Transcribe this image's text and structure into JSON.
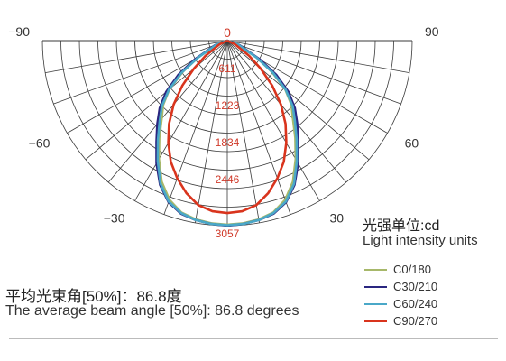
{
  "chart_data": {
    "type": "polar-line",
    "angle_unit": "degrees",
    "angle_range": [
      -90,
      90
    ],
    "angle_tick_labels": [
      "-90",
      "-60",
      "-30",
      "0",
      "30",
      "60",
      "90"
    ],
    "radial_max": 3057,
    "radial_tick_labels": [
      "611",
      "1223",
      "1834",
      "2446",
      "3057"
    ],
    "series": [
      {
        "name": "C0/180",
        "color": "#a7b86a",
        "points": [
          [
            -80,
            0
          ],
          [
            -70,
            190
          ],
          [
            -60,
            560
          ],
          [
            -55,
            900
          ],
          [
            -50,
            1250
          ],
          [
            -45,
            1500
          ],
          [
            -40,
            1690
          ],
          [
            -35,
            1960
          ],
          [
            -30,
            2260
          ],
          [
            -25,
            2570
          ],
          [
            -20,
            2800
          ],
          [
            -15,
            2940
          ],
          [
            -10,
            3000
          ],
          [
            -5,
            3030
          ],
          [
            0,
            3040
          ],
          [
            5,
            3030
          ],
          [
            10,
            3000
          ],
          [
            15,
            2940
          ],
          [
            20,
            2800
          ],
          [
            25,
            2570
          ],
          [
            30,
            2260
          ],
          [
            35,
            1960
          ],
          [
            40,
            1690
          ],
          [
            45,
            1500
          ],
          [
            50,
            1250
          ],
          [
            55,
            900
          ],
          [
            60,
            560
          ],
          [
            70,
            190
          ],
          [
            80,
            0
          ]
        ]
      },
      {
        "name": "C30/210",
        "color": "#2a2680",
        "points": [
          [
            -80,
            0
          ],
          [
            -70,
            210
          ],
          [
            -60,
            620
          ],
          [
            -55,
            990
          ],
          [
            -50,
            1320
          ],
          [
            -45,
            1580
          ],
          [
            -40,
            1800
          ],
          [
            -35,
            2040
          ],
          [
            -30,
            2340
          ],
          [
            -25,
            2630
          ],
          [
            -20,
            2840
          ],
          [
            -15,
            2960
          ],
          [
            -10,
            3010
          ],
          [
            -5,
            3040
          ],
          [
            0,
            3057
          ],
          [
            5,
            3040
          ],
          [
            10,
            3010
          ],
          [
            15,
            2960
          ],
          [
            20,
            2840
          ],
          [
            25,
            2630
          ],
          [
            30,
            2340
          ],
          [
            35,
            2040
          ],
          [
            40,
            1800
          ],
          [
            45,
            1580
          ],
          [
            50,
            1320
          ],
          [
            55,
            990
          ],
          [
            60,
            620
          ],
          [
            70,
            210
          ],
          [
            80,
            0
          ]
        ]
      },
      {
        "name": "C60/240",
        "color": "#4aa8c8",
        "points": [
          [
            -80,
            0
          ],
          [
            -70,
            190
          ],
          [
            -60,
            560
          ],
          [
            -55,
            920
          ],
          [
            -50,
            1260
          ],
          [
            -45,
            1530
          ],
          [
            -40,
            1740
          ],
          [
            -35,
            2000
          ],
          [
            -30,
            2300
          ],
          [
            -25,
            2610
          ],
          [
            -20,
            2830
          ],
          [
            -15,
            2950
          ],
          [
            -10,
            3010
          ],
          [
            -5,
            3040
          ],
          [
            0,
            3050
          ],
          [
            5,
            3040
          ],
          [
            10,
            3010
          ],
          [
            15,
            2950
          ],
          [
            20,
            2830
          ],
          [
            25,
            2610
          ],
          [
            30,
            2300
          ],
          [
            35,
            2000
          ],
          [
            40,
            1740
          ],
          [
            45,
            1530
          ],
          [
            50,
            1260
          ],
          [
            55,
            920
          ],
          [
            60,
            560
          ],
          [
            70,
            190
          ],
          [
            80,
            0
          ]
        ]
      },
      {
        "name": "C90/270",
        "color": "#d9341d",
        "points": [
          [
            -75,
            0
          ],
          [
            -65,
            140
          ],
          [
            -55,
            440
          ],
          [
            -50,
            720
          ],
          [
            -45,
            1050
          ],
          [
            -40,
            1380
          ],
          [
            -35,
            1680
          ],
          [
            -30,
            1950
          ],
          [
            -25,
            2210
          ],
          [
            -20,
            2420
          ],
          [
            -15,
            2610
          ],
          [
            -10,
            2760
          ],
          [
            -5,
            2830
          ],
          [
            0,
            2850
          ],
          [
            5,
            2830
          ],
          [
            10,
            2760
          ],
          [
            15,
            2610
          ],
          [
            20,
            2420
          ],
          [
            25,
            2210
          ],
          [
            30,
            1950
          ],
          [
            35,
            1680
          ],
          [
            40,
            1380
          ],
          [
            45,
            1050
          ],
          [
            50,
            720
          ],
          [
            55,
            440
          ],
          [
            65,
            140
          ],
          [
            75,
            0
          ]
        ]
      }
    ]
  },
  "unit": {
    "title": "光强单位:cd",
    "subtitle": "Light intensity units"
  },
  "beam": {
    "cn": "平均光束角[50%]：86.8度",
    "en": "The average beam angle [50%]: 86.8 degrees"
  }
}
